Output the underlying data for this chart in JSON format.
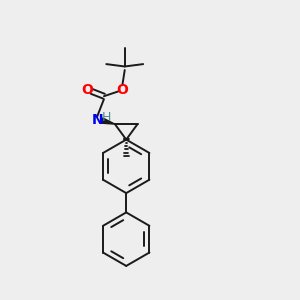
{
  "background_color": "#eeeeee",
  "bond_color": "#1a1a1a",
  "atom_colors": {
    "O": "#ff0000",
    "N": "#0000ee",
    "H_color": "#4a8f8f",
    "C": "#1a1a1a"
  },
  "figsize": [
    3.0,
    3.0
  ],
  "dpi": 100,
  "xlim": [
    0,
    10
  ],
  "ylim": [
    0,
    10
  ]
}
